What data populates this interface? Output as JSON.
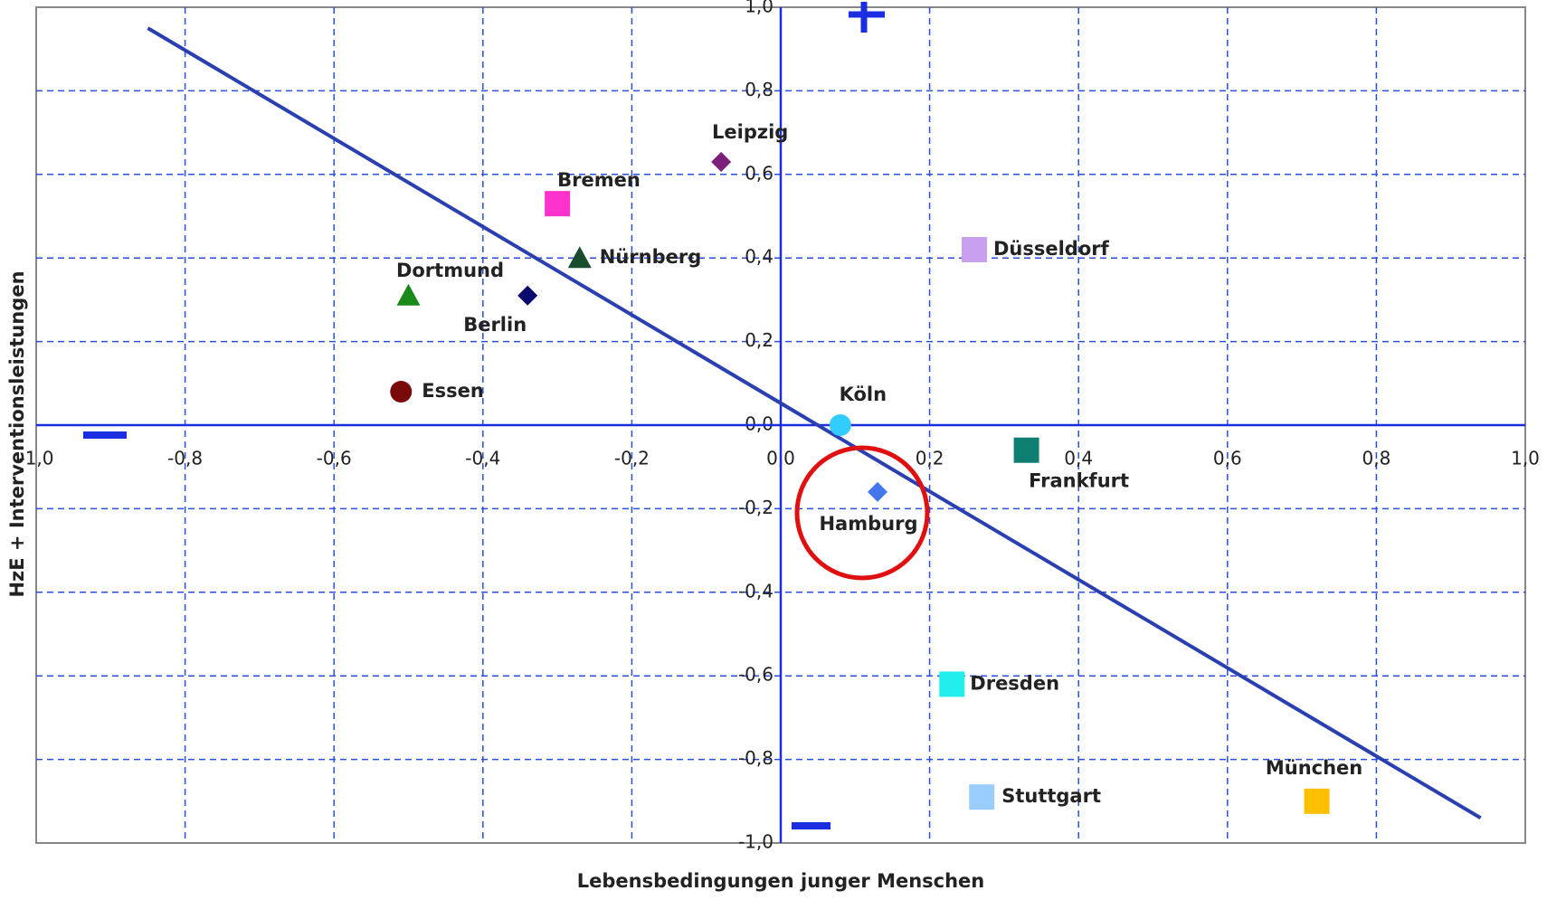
{
  "chart_data": {
    "type": "scatter",
    "xlabel": "Lebensbedingungen junger Menschen",
    "ylabel": "HzE + Interventionsleistungen",
    "xlim": [
      -1.0,
      1.0
    ],
    "ylim": [
      -1.0,
      1.0
    ],
    "xticks": [
      {
        "value": -1.0,
        "label": "-1,0"
      },
      {
        "value": -0.8,
        "label": "-0,8"
      },
      {
        "value": -0.6,
        "label": "-0,6"
      },
      {
        "value": -0.4,
        "label": "-0,4"
      },
      {
        "value": -0.2,
        "label": "-0,2"
      },
      {
        "value": 0,
        "label": "0,0"
      },
      {
        "value": 0.2,
        "label": "0,2"
      },
      {
        "value": 0.4,
        "label": "0,4"
      },
      {
        "value": 0.6,
        "label": "0,6"
      },
      {
        "value": 0.8,
        "label": "0,8"
      },
      {
        "value": 1.0,
        "label": "1,0"
      }
    ],
    "yticks": [
      {
        "value": 1.0,
        "label": "1,0"
      },
      {
        "value": 0.8,
        "label": "0,8"
      },
      {
        "value": 0.6,
        "label": "0,6"
      },
      {
        "value": 0.4,
        "label": "0,4"
      },
      {
        "value": 0.2,
        "label": "0,2"
      },
      {
        "value": 0,
        "label": "0,0"
      },
      {
        "value": -0.2,
        "label": "-0,2"
      },
      {
        "value": -0.4,
        "label": "-0,4"
      },
      {
        "value": -0.6,
        "label": "-0,6"
      },
      {
        "value": -0.8,
        "label": "-0,8"
      },
      {
        "value": -1.0,
        "label": "-1,0"
      }
    ],
    "grid": true,
    "points": [
      {
        "name": "Leipzig",
        "x": -0.08,
        "y": 0.63,
        "color": "#7b1f7b",
        "marker": "diamond"
      },
      {
        "name": "Bremen",
        "x": -0.3,
        "y": 0.53,
        "color": "#ff33cc",
        "marker": "square"
      },
      {
        "name": "Nürnberg",
        "x": -0.27,
        "y": 0.4,
        "color": "#1a4d2e",
        "marker": "triangle"
      },
      {
        "name": "Dortmund",
        "x": -0.5,
        "y": 0.31,
        "color": "#1a8a1a",
        "marker": "triangle"
      },
      {
        "name": "Berlin",
        "x": -0.34,
        "y": 0.31,
        "color": "#0a0a6e",
        "marker": "diamond"
      },
      {
        "name": "Essen",
        "x": -0.51,
        "y": 0.08,
        "color": "#7a0a0a",
        "marker": "circle"
      },
      {
        "name": "Düsseldorf",
        "x": 0.26,
        "y": 0.42,
        "color": "#c9a0f0",
        "marker": "square"
      },
      {
        "name": "Köln",
        "x": 0.08,
        "y": 0.0,
        "color": "#33ccff",
        "marker": "circle"
      },
      {
        "name": "Frankfurt",
        "x": 0.33,
        "y": -0.06,
        "color": "#0f7f74",
        "marker": "square"
      },
      {
        "name": "Hamburg",
        "x": 0.13,
        "y": -0.16,
        "color": "#4477ee",
        "marker": "diamond"
      },
      {
        "name": "Dresden",
        "x": 0.23,
        "y": -0.62,
        "color": "#22eeee",
        "marker": "square"
      },
      {
        "name": "Stuttgart",
        "x": 0.27,
        "y": -0.89,
        "color": "#99ccff",
        "marker": "square"
      },
      {
        "name": "München",
        "x": 0.72,
        "y": -0.9,
        "color": "#ffc000",
        "marker": "square"
      }
    ],
    "trendline": {
      "x": [
        -0.85,
        0.94
      ],
      "y": [
        0.95,
        -0.94
      ],
      "color": "#2a3fb0"
    }
  }
}
